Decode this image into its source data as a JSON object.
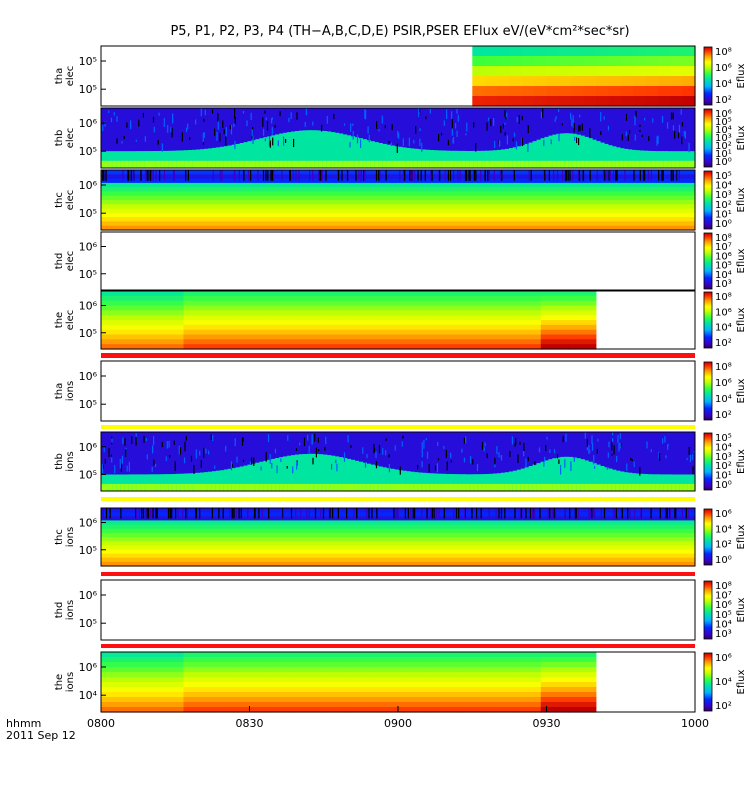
{
  "title": "P5, P1, P2, P3, P4 (TH−A,B,C,D,E) PSIR,PSER EFlux eV/(eV*cm²*sec*sr)",
  "x_axis": {
    "label_line1": "hhmm",
    "label_line2": "2011 Sep 12",
    "ticks": [
      "0800",
      "0830",
      "0900",
      "0930",
      "1000"
    ]
  },
  "colorbar_label": "Eflux",
  "chart_data": [
    {
      "type": "heatmap",
      "ylabel": [
        "tha",
        "elec"
      ],
      "yticks": [
        "10⁵",
        "10⁵"
      ],
      "cbar_ticks": [
        "10⁸",
        "10⁶",
        "10⁴",
        "10²"
      ],
      "data_start_fraction": 0.625,
      "data_end_fraction": 1.0,
      "levels_top_to_bottom": [
        0.45,
        0.55,
        0.65,
        0.78,
        0.88,
        0.95
      ]
    },
    {
      "type": "heatmap",
      "ylabel": [
        "thb",
        "elec"
      ],
      "yticks": [
        "10⁶",
        "10⁵"
      ],
      "cbar_ticks": [
        "10⁶",
        "10⁵",
        "10⁴",
        "10³",
        "10²",
        "10¹",
        "10⁰"
      ],
      "style": "noisy-lowfreq-band"
    },
    {
      "type": "heatmap",
      "ylabel": [
        "thc",
        "elec"
      ],
      "yticks": [
        "10⁶",
        "10⁵"
      ],
      "cbar_ticks": [
        "10⁵",
        "10⁴",
        "10³",
        "10²",
        "10¹",
        "10⁰"
      ],
      "style": "horizontal-bands"
    },
    {
      "type": "heatmap",
      "ylabel": [
        "thd",
        "elec"
      ],
      "yticks": [
        "10⁶",
        "10⁵"
      ],
      "cbar_ticks": [
        "10⁸",
        "10⁷",
        "10⁶",
        "10⁵",
        "10⁴",
        "10³"
      ],
      "style": "empty"
    },
    {
      "type": "heatmap",
      "ylabel": [
        "the",
        "elec"
      ],
      "yticks": [
        "10⁶",
        "10⁵"
      ],
      "cbar_ticks": [
        "10⁸",
        "10⁶",
        "10⁴",
        "10²"
      ],
      "data_end_fraction": 0.833
    },
    {
      "type": "heatmap",
      "ylabel": [
        "tha",
        "ions"
      ],
      "yticks": [
        "10⁶",
        "10⁵"
      ],
      "cbar_ticks": [
        "10⁸",
        "10⁶",
        "10⁴",
        "10²"
      ],
      "style": "empty"
    },
    {
      "type": "heatmap",
      "ylabel": [
        "thb",
        "ions"
      ],
      "yticks": [
        "10⁶",
        "10⁵"
      ],
      "cbar_ticks": [
        "10⁵",
        "10⁴",
        "10³",
        "10²",
        "10¹",
        "10⁰"
      ],
      "style": "noisy-lowfreq-band"
    },
    {
      "type": "heatmap",
      "ylabel": [
        "thc",
        "ions"
      ],
      "yticks": [
        "10⁶",
        "10⁵"
      ],
      "cbar_ticks": [
        "10⁶",
        "10⁴",
        "10²",
        "10⁰"
      ],
      "style": "horizontal-bands"
    },
    {
      "type": "heatmap",
      "ylabel": [
        "thd",
        "ions"
      ],
      "yticks": [
        "10⁶",
        "10⁵"
      ],
      "cbar_ticks": [
        "10⁸",
        "10⁷",
        "10⁶",
        "10⁵",
        "10⁴",
        "10³"
      ],
      "style": "empty"
    },
    {
      "type": "heatmap",
      "ylabel": [
        "the",
        "ions"
      ],
      "yticks": [
        "10⁶",
        "10⁴"
      ],
      "cbar_ticks": [
        "10⁶",
        "10⁴",
        "10²"
      ],
      "data_end_fraction": 0.833
    }
  ]
}
